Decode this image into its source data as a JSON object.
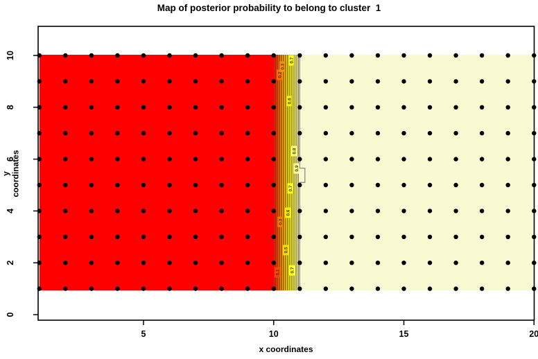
{
  "page": {
    "background": "#ffffff"
  },
  "chart_data": {
    "type": "filled-contour",
    "title": "Map of posterior probability to belong to cluster  1",
    "xlabel": "x coordinates",
    "ylabel": "y coordinates",
    "x_ticks": [
      5,
      10,
      15,
      20
    ],
    "y_ticks": [
      0,
      2,
      4,
      6,
      8,
      10
    ],
    "x_domain": [
      1,
      20
    ],
    "y_domain": [
      1,
      10
    ],
    "grid_points": {
      "x_min": 1,
      "x_max": 20,
      "x_step": 1,
      "y_min": 1,
      "y_max": 10,
      "y_step": 1
    },
    "regions": [
      {
        "name": "low-probability-region",
        "color": "#FF0000",
        "x_from": 1,
        "x_to": 10.03
      },
      {
        "name": "transition-region",
        "x_from": 10.03,
        "x_to": 11.0,
        "gradient": [
          "#FF0000",
          "#FF4500",
          "#FF8000",
          "#FFB000",
          "#FFE000",
          "#FFFF00",
          "#FFFF66",
          "#FFFFAE",
          "#FAFAD2"
        ]
      },
      {
        "name": "high-probability-region",
        "color": "#FAFAD2",
        "x_from": 11.0,
        "x_to": 20
      }
    ],
    "contour_levels": [
      0.1,
      0.2,
      0.3,
      0.4,
      0.5,
      0.6,
      0.7,
      0.8,
      0.9
    ],
    "contour_lines_x": [
      10.06,
      10.14,
      10.22,
      10.3,
      10.38,
      10.46,
      10.54,
      10.62,
      10.7,
      10.78,
      10.86,
      10.94
    ],
    "boundary_line": {
      "x": 11.0,
      "jog": {
        "x_to": 11.2,
        "y_from": 5.1,
        "y_to": 5.65
      }
    },
    "contour_labels": [
      {
        "text": "0.1",
        "x": 10.14,
        "y": 1.63,
        "bg": "#FF4500"
      },
      {
        "text": "0.2",
        "x": 10.22,
        "y": 9.25,
        "bg": "#FF6D00"
      },
      {
        "text": "0.3",
        "x": 10.33,
        "y": 9.57,
        "bg": "#FF9200"
      },
      {
        "text": "0.3",
        "x": 10.25,
        "y": 3.58,
        "bg": "#FF7B00"
      },
      {
        "text": "0.5",
        "x": 10.46,
        "y": 2.49,
        "bg": "#FFD700"
      },
      {
        "text": "0.6",
        "x": 10.54,
        "y": 3.93,
        "bg": "#FFF000"
      },
      {
        "text": "0.6",
        "x": 10.59,
        "y": 8.24,
        "bg": "#FFF000"
      },
      {
        "text": "0.7",
        "x": 10.67,
        "y": 9.81,
        "bg": "#FFFF20"
      },
      {
        "text": "0.7",
        "x": 10.64,
        "y": 4.87,
        "bg": "#FFFF20"
      },
      {
        "text": "0.7",
        "x": 10.7,
        "y": 1.71,
        "bg": "#FFFF20"
      },
      {
        "text": "0.8",
        "x": 10.78,
        "y": 6.31,
        "bg": "#FFFF70"
      },
      {
        "text": "0.9",
        "x": 10.88,
        "y": 5.64,
        "bg": "#FFFFA0"
      }
    ],
    "colors": {
      "dot": "#000000",
      "contour_line": "#5a4500",
      "contour_label_text": "#3b3b00",
      "boundary_line": "#808080",
      "axis": "#000000"
    }
  }
}
